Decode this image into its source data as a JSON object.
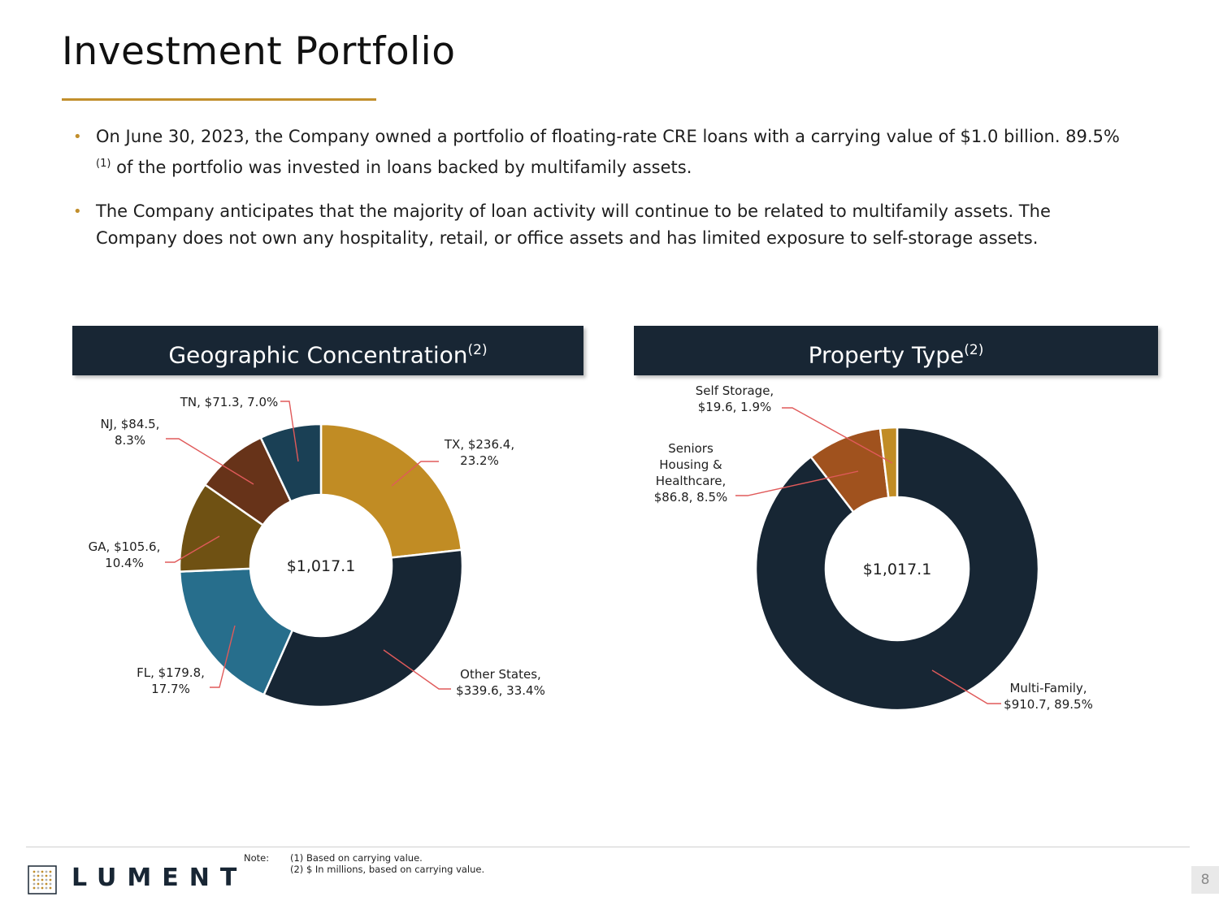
{
  "page": {
    "title": "Investment Portfolio",
    "bullets": [
      {
        "text_before": "On June 30, 2023, the Company owned a portfolio of floating-rate CRE loans with a carrying value of $1.0 billion. 89.5%",
        "sup": "(1)",
        "text_after": " of the portfolio was invested in loans backed by multifamily assets."
      },
      {
        "text_before": "The Company anticipates that the majority of loan activity will continue to be related to multifamily assets. The Company does not own any hospitality, retail, or office assets and has limited exposure to self-storage assets.",
        "sup": "",
        "text_after": ""
      }
    ],
    "geo_header": {
      "label": "Geographic Concentration",
      "sup": "(2)"
    },
    "prop_header": {
      "label": "Property Type",
      "sup": "(2)"
    },
    "footer": {
      "logo_text": "LUMENT",
      "note_label": "Note:",
      "notes": [
        "(1) Based on carrying value.",
        "(2) $ In millions, based on carrying value."
      ],
      "page_number": "8"
    }
  },
  "colors": {
    "gold": "#c28f2c",
    "navy": "#182634",
    "leader": "#e05a5a"
  },
  "chart_data": [
    {
      "type": "pie",
      "title": "Geographic Concentration",
      "center_label": "$1,017.1",
      "slices": [
        {
          "name": "TX",
          "value": 236.4,
          "pct": "23.2%",
          "color": "#c18c24",
          "label_lines": [
            "TX, $236.4,",
            "23.2%"
          ]
        },
        {
          "name": "Other States",
          "value": 339.6,
          "pct": "33.4%",
          "color": "#172634",
          "label_lines": [
            "Other States,",
            "$339.6, 33.4%"
          ]
        },
        {
          "name": "FL",
          "value": 179.8,
          "pct": "17.7%",
          "color": "#276e8c",
          "label_lines": [
            "FL, $179.8,",
            "17.7%"
          ]
        },
        {
          "name": "GA",
          "value": 105.6,
          "pct": "10.4%",
          "color": "#6f5113",
          "label_lines": [
            "GA, $105.6,",
            "10.4%"
          ]
        },
        {
          "name": "NJ",
          "value": 84.5,
          "pct": "8.3%",
          "color": "#673319",
          "label_lines": [
            "NJ, $84.5,",
            "8.3%"
          ]
        },
        {
          "name": "TN",
          "value": 71.3,
          "pct": "7.0%",
          "color": "#1a4055",
          "label_lines": [
            "TN, $71.3, 7.0%"
          ]
        }
      ]
    },
    {
      "type": "pie",
      "title": "Property Type",
      "center_label": "$1,017.1",
      "slices": [
        {
          "name": "Multi-Family",
          "value": 910.7,
          "pct": "89.5%",
          "color": "#172634",
          "label_lines": [
            "Multi-Family,",
            "$910.7, 89.5%"
          ]
        },
        {
          "name": "Seniors Housing & Healthcare",
          "value": 86.8,
          "pct": "8.5%",
          "color": "#a0521e",
          "label_lines": [
            "Seniors",
            "Housing &",
            "Healthcare,",
            "$86.8, 8.5%"
          ]
        },
        {
          "name": "Self Storage",
          "value": 19.6,
          "pct": "1.9%",
          "color": "#c18c24",
          "label_lines": [
            "Self Storage,",
            "$19.6, 1.9%"
          ]
        }
      ]
    }
  ]
}
